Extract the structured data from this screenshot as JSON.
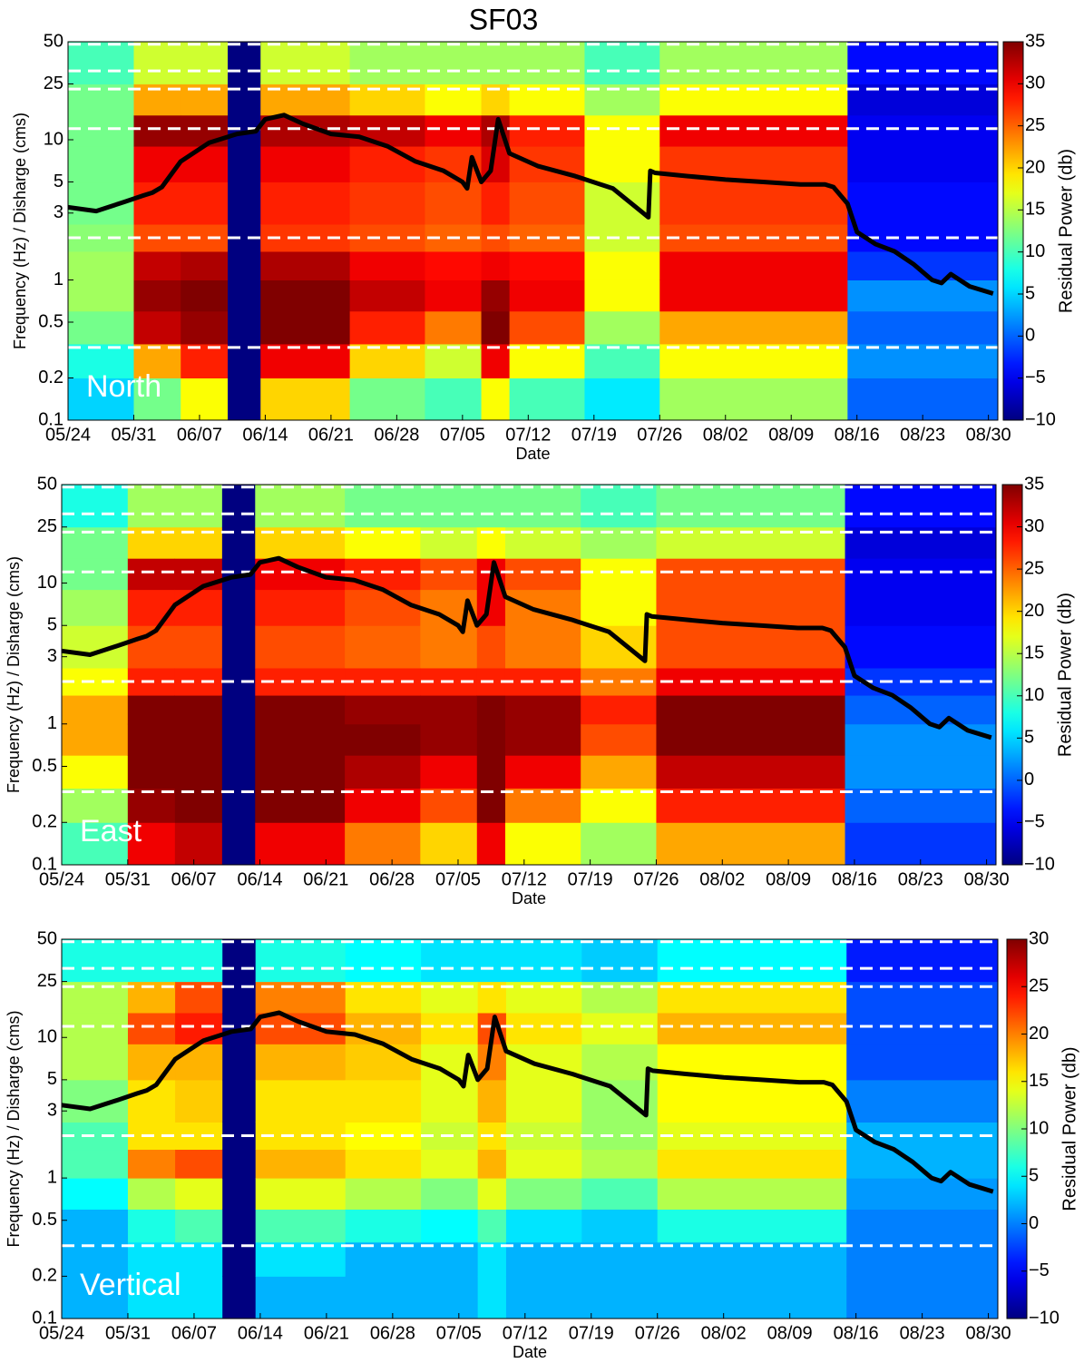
{
  "title": "SF03",
  "chart_data": [
    {
      "type": "heatmap",
      "label": "North",
      "xlabel": "Date",
      "ylabel": "Frequency (Hz)  / Disharge (cms)",
      "colorbar_label": "Residual Power (db)",
      "log_y": true,
      "colormap": "jet",
      "xlim": [
        0,
        99
      ],
      "xticks": [
        {
          "value": 0,
          "label": "05/24"
        },
        {
          "value": 7,
          "label": "05/31"
        },
        {
          "value": 14,
          "label": "06/07"
        },
        {
          "value": 21,
          "label": "06/14"
        },
        {
          "value": 28,
          "label": "06/21"
        },
        {
          "value": 35,
          "label": "06/28"
        },
        {
          "value": 42,
          "label": "07/05"
        },
        {
          "value": 49,
          "label": "07/12"
        },
        {
          "value": 56,
          "label": "07/19"
        },
        {
          "value": 63,
          "label": "07/26"
        },
        {
          "value": 70,
          "label": "08/02"
        },
        {
          "value": 77,
          "label": "08/09"
        },
        {
          "value": 84,
          "label": "08/16"
        },
        {
          "value": 91,
          "label": "08/23"
        },
        {
          "value": 98,
          "label": "08/30"
        }
      ],
      "ylim": [
        0.1,
        50
      ],
      "yticks": [
        0.1,
        0.2,
        0.5,
        1,
        3,
        5,
        10,
        25,
        50
      ],
      "clim": [
        -10,
        35
      ],
      "cticks": [
        {
          "value": -10,
          "label": "−10"
        },
        {
          "value": -5,
          "label": "−5"
        },
        0,
        5,
        10,
        15,
        20,
        25,
        30,
        35
      ],
      "x_edges": [
        0,
        7,
        12,
        17,
        20.5,
        30,
        38,
        44,
        47,
        55,
        63,
        83,
        99
      ],
      "y_edges": [
        0.1,
        0.2,
        0.35,
        0.6,
        1,
        1.6,
        2.5,
        5,
        9,
        15,
        25,
        50
      ],
      "z": [
        [
          5,
          8,
          12,
          14,
          14,
          13,
          12,
          12,
          12,
          12,
          10
        ],
        [
          12,
          22,
          32,
          34,
          32,
          26,
          28,
          30,
          34,
          22,
          16
        ],
        [
          18,
          28,
          34,
          35,
          33,
          26,
          28,
          30,
          34,
          22,
          16
        ],
        [
          -10,
          -10,
          -10,
          -10,
          -10,
          -10,
          -10,
          -10,
          -10,
          -10,
          -10
        ],
        [
          20,
          30,
          35,
          35,
          33,
          27,
          28,
          30,
          33,
          22,
          16
        ],
        [
          12,
          20,
          28,
          32,
          30,
          26,
          27,
          28,
          32,
          20,
          14
        ],
        [
          10,
          16,
          24,
          30,
          29,
          25,
          26,
          27,
          30,
          18,
          14
        ],
        [
          18,
          30,
          35,
          34,
          30,
          26,
          28,
          31,
          33,
          20,
          14
        ],
        [
          10,
          18,
          26,
          30,
          29,
          25,
          26,
          27,
          28,
          18,
          14
        ],
        [
          6,
          10,
          14,
          18,
          18,
          16,
          16,
          18,
          18,
          14,
          10
        ],
        [
          14,
          18,
          22,
          30,
          30,
          26,
          27,
          27,
          30,
          18,
          14
        ],
        [
          0,
          2,
          0,
          2,
          -2,
          -4,
          -4,
          -5,
          -5,
          -6,
          -4
        ]
      ],
      "reference_lines": [
        48,
        31,
        23,
        12,
        2,
        0.33
      ],
      "series": [
        {
          "color": "#000000",
          "x": [
            0,
            3,
            6,
            8,
            9,
            10,
            12,
            15,
            18,
            20,
            21,
            23,
            25,
            28,
            31,
            34,
            37,
            40,
            42,
            42.5,
            43,
            44,
            45,
            45.8,
            47,
            50,
            54,
            58,
            61.8,
            62,
            62.5,
            66,
            70,
            74,
            78,
            80.6,
            81.5,
            83,
            84,
            86,
            88,
            90,
            92,
            93,
            94,
            96,
            98.5
          ],
          "values": [
            3.3,
            3.1,
            3.6,
            4.0,
            4.2,
            4.6,
            7,
            9.5,
            11,
            11.5,
            14,
            15,
            13,
            11,
            10.5,
            9,
            7,
            6,
            5,
            4.5,
            7.5,
            5,
            6,
            14,
            8,
            6.5,
            5.5,
            4.5,
            2.8,
            6,
            5.8,
            5.5,
            5.2,
            5,
            4.8,
            4.8,
            4.6,
            3.5,
            2.2,
            1.8,
            1.6,
            1.3,
            1.0,
            0.95,
            1.1,
            0.9,
            0.8
          ]
        }
      ]
    },
    {
      "type": "heatmap",
      "label": "East",
      "xlabel": "Date",
      "ylabel": "Frequency (Hz)  / Disharge (cms)",
      "colorbar_label": "Residual Power (db)",
      "log_y": true,
      "colormap": "jet",
      "xlim": [
        0,
        99
      ],
      "xticks": [
        {
          "value": 0,
          "label": "05/24"
        },
        {
          "value": 7,
          "label": "05/31"
        },
        {
          "value": 14,
          "label": "06/07"
        },
        {
          "value": 21,
          "label": "06/14"
        },
        {
          "value": 28,
          "label": "06/21"
        },
        {
          "value": 35,
          "label": "06/28"
        },
        {
          "value": 42,
          "label": "07/05"
        },
        {
          "value": 49,
          "label": "07/12"
        },
        {
          "value": 56,
          "label": "07/19"
        },
        {
          "value": 63,
          "label": "07/26"
        },
        {
          "value": 70,
          "label": "08/02"
        },
        {
          "value": 77,
          "label": "08/09"
        },
        {
          "value": 84,
          "label": "08/16"
        },
        {
          "value": 91,
          "label": "08/23"
        },
        {
          "value": 98,
          "label": "08/30"
        }
      ],
      "ylim": [
        0.1,
        50
      ],
      "yticks": [
        0.1,
        0.2,
        0.5,
        1,
        3,
        5,
        10,
        25,
        50
      ],
      "clim": [
        -10,
        35
      ],
      "cticks": [
        {
          "value": -10,
          "label": "−10"
        },
        {
          "value": -5,
          "label": "−5"
        },
        0,
        5,
        10,
        15,
        20,
        25,
        30,
        35
      ],
      "x_edges": [
        0,
        7,
        12,
        17,
        20.5,
        30,
        38,
        44,
        47,
        55,
        63,
        83,
        99
      ],
      "y_edges": [
        0.1,
        0.2,
        0.35,
        0.6,
        1,
        1.6,
        2.5,
        5,
        9,
        15,
        25,
        50
      ],
      "z": [
        [
          10,
          14,
          18,
          22,
          22,
          18,
          16,
          14,
          12,
          12,
          8
        ],
        [
          30,
          34,
          35,
          35,
          35,
          28,
          26,
          28,
          32,
          20,
          14
        ],
        [
          32,
          35,
          35,
          35,
          35,
          28,
          26,
          28,
          32,
          20,
          14
        ],
        [
          -10,
          -10,
          -10,
          -10,
          -10,
          -10,
          -10,
          -10,
          -10,
          -10,
          -10
        ],
        [
          30,
          35,
          35,
          35,
          35,
          28,
          26,
          28,
          30,
          20,
          14
        ],
        [
          24,
          30,
          33,
          35,
          34,
          28,
          25,
          26,
          28,
          18,
          12
        ],
        [
          20,
          26,
          30,
          34,
          34,
          28,
          24,
          24,
          26,
          16,
          12
        ],
        [
          30,
          35,
          35,
          35,
          35,
          28,
          26,
          30,
          30,
          18,
          12
        ],
        [
          18,
          24,
          30,
          34,
          34,
          28,
          24,
          24,
          26,
          16,
          12
        ],
        [
          14,
          18,
          22,
          26,
          28,
          24,
          20,
          18,
          18,
          14,
          10
        ],
        [
          22,
          28,
          32,
          35,
          35,
          30,
          26,
          26,
          26,
          16,
          12
        ],
        [
          -2,
          0,
          2,
          2,
          0,
          -2,
          -4,
          -5,
          -5,
          -6,
          -4
        ]
      ],
      "reference_lines": [
        48,
        31,
        23,
        12,
        2,
        0.33
      ],
      "series": [
        {
          "color": "#000000",
          "x": [
            0,
            3,
            6,
            8,
            9,
            10,
            12,
            15,
            18,
            20,
            21,
            23,
            25,
            28,
            31,
            34,
            37,
            40,
            42,
            42.5,
            43,
            44,
            45,
            45.8,
            47,
            50,
            54,
            58,
            61.8,
            62,
            62.5,
            66,
            70,
            74,
            78,
            80.6,
            81.5,
            83,
            84,
            86,
            88,
            90,
            92,
            93,
            94,
            96,
            98.5
          ],
          "values": [
            3.3,
            3.1,
            3.6,
            4.0,
            4.2,
            4.6,
            7,
            9.5,
            11,
            11.5,
            14,
            15,
            13,
            11,
            10.5,
            9,
            7,
            6,
            5,
            4.5,
            7.5,
            5,
            6,
            14,
            8,
            6.5,
            5.5,
            4.5,
            2.8,
            6,
            5.8,
            5.5,
            5.2,
            5,
            4.8,
            4.8,
            4.6,
            3.5,
            2.2,
            1.8,
            1.6,
            1.3,
            1.0,
            0.95,
            1.1,
            0.9,
            0.8
          ]
        }
      ]
    },
    {
      "type": "heatmap",
      "label": "Vertical",
      "xlabel": "Date",
      "ylabel": "Frequency (Hz)  / Disharge (cms)",
      "colorbar_label": "Residual Power (db)",
      "log_y": true,
      "colormap": "jet",
      "xlim": [
        0,
        99
      ],
      "xticks": [
        {
          "value": 0,
          "label": "05/24"
        },
        {
          "value": 7,
          "label": "05/31"
        },
        {
          "value": 14,
          "label": "06/07"
        },
        {
          "value": 21,
          "label": "06/14"
        },
        {
          "value": 28,
          "label": "06/21"
        },
        {
          "value": 35,
          "label": "06/28"
        },
        {
          "value": 42,
          "label": "07/05"
        },
        {
          "value": 49,
          "label": "07/12"
        },
        {
          "value": 56,
          "label": "07/19"
        },
        {
          "value": 63,
          "label": "07/26"
        },
        {
          "value": 70,
          "label": "08/02"
        },
        {
          "value": 77,
          "label": "08/09"
        },
        {
          "value": 84,
          "label": "08/16"
        },
        {
          "value": 91,
          "label": "08/23"
        },
        {
          "value": 98,
          "label": "08/30"
        }
      ],
      "ylim": [
        0.1,
        50
      ],
      "yticks": [
        0.1,
        0.2,
        0.5,
        1,
        3,
        5,
        10,
        25,
        50
      ],
      "clim": [
        -10,
        30
      ],
      "cticks": [
        {
          "value": -10,
          "label": "−10"
        },
        {
          "value": -5,
          "label": "−5"
        },
        0,
        5,
        10,
        15,
        20,
        25,
        30
      ],
      "x_edges": [
        0,
        7,
        12,
        17,
        20.5,
        30,
        38,
        44,
        47,
        55,
        63,
        83,
        99
      ],
      "y_edges": [
        0.1,
        0.2,
        0.35,
        0.6,
        1,
        1.6,
        2.5,
        5,
        9,
        15,
        25,
        50
      ],
      "z": [
        [
          2,
          2,
          2,
          5,
          8,
          8,
          10,
          12,
          12,
          12,
          6
        ],
        [
          4,
          4,
          6,
          12,
          20,
          16,
          16,
          18,
          22,
          18,
          6
        ],
        [
          4,
          4,
          8,
          14,
          22,
          16,
          17,
          18,
          24,
          22,
          6
        ],
        [
          -10,
          -10,
          -10,
          -10,
          -10,
          -10,
          -10,
          -10,
          -10,
          -10,
          -10
        ],
        [
          2,
          4,
          8,
          14,
          18,
          16,
          16,
          18,
          22,
          20,
          6
        ],
        [
          2,
          2,
          6,
          12,
          16,
          15,
          16,
          17,
          18,
          16,
          5
        ],
        [
          2,
          2,
          5,
          10,
          14,
          13,
          14,
          14,
          16,
          14,
          4
        ],
        [
          4,
          4,
          8,
          14,
          18,
          16,
          18,
          20,
          22,
          16,
          4
        ],
        [
          2,
          2,
          4,
          10,
          14,
          13,
          14,
          14,
          16,
          14,
          4
        ],
        [
          2,
          2,
          3,
          8,
          12,
          11,
          11,
          12,
          14,
          12,
          3
        ],
        [
          2,
          2,
          6,
          12,
          16,
          14,
          15,
          15,
          18,
          16,
          5
        ],
        [
          0,
          0,
          0,
          1,
          2,
          2,
          0,
          -2,
          -2,
          -2,
          -4
        ]
      ],
      "reference_lines": [
        48,
        31,
        23,
        12,
        2,
        0.33
      ],
      "series": [
        {
          "color": "#000000",
          "x": [
            0,
            3,
            6,
            8,
            9,
            10,
            12,
            15,
            18,
            20,
            21,
            23,
            25,
            28,
            31,
            34,
            37,
            40,
            42,
            42.5,
            43,
            44,
            45,
            45.8,
            47,
            50,
            54,
            58,
            61.8,
            62,
            62.5,
            66,
            70,
            74,
            78,
            80.6,
            81.5,
            83,
            84,
            86,
            88,
            90,
            92,
            93,
            94,
            96,
            98.5
          ],
          "values": [
            3.3,
            3.1,
            3.6,
            4.0,
            4.2,
            4.6,
            7,
            9.5,
            11,
            11.5,
            14,
            15,
            13,
            11,
            10.5,
            9,
            7,
            6,
            5,
            4.5,
            7.5,
            5,
            6,
            14,
            8,
            6.5,
            5.5,
            4.5,
            2.8,
            6,
            5.8,
            5.5,
            5.2,
            5,
            4.8,
            4.8,
            4.6,
            3.5,
            2.2,
            1.8,
            1.6,
            1.3,
            1.0,
            0.95,
            1.1,
            0.9,
            0.8
          ]
        }
      ]
    }
  ]
}
